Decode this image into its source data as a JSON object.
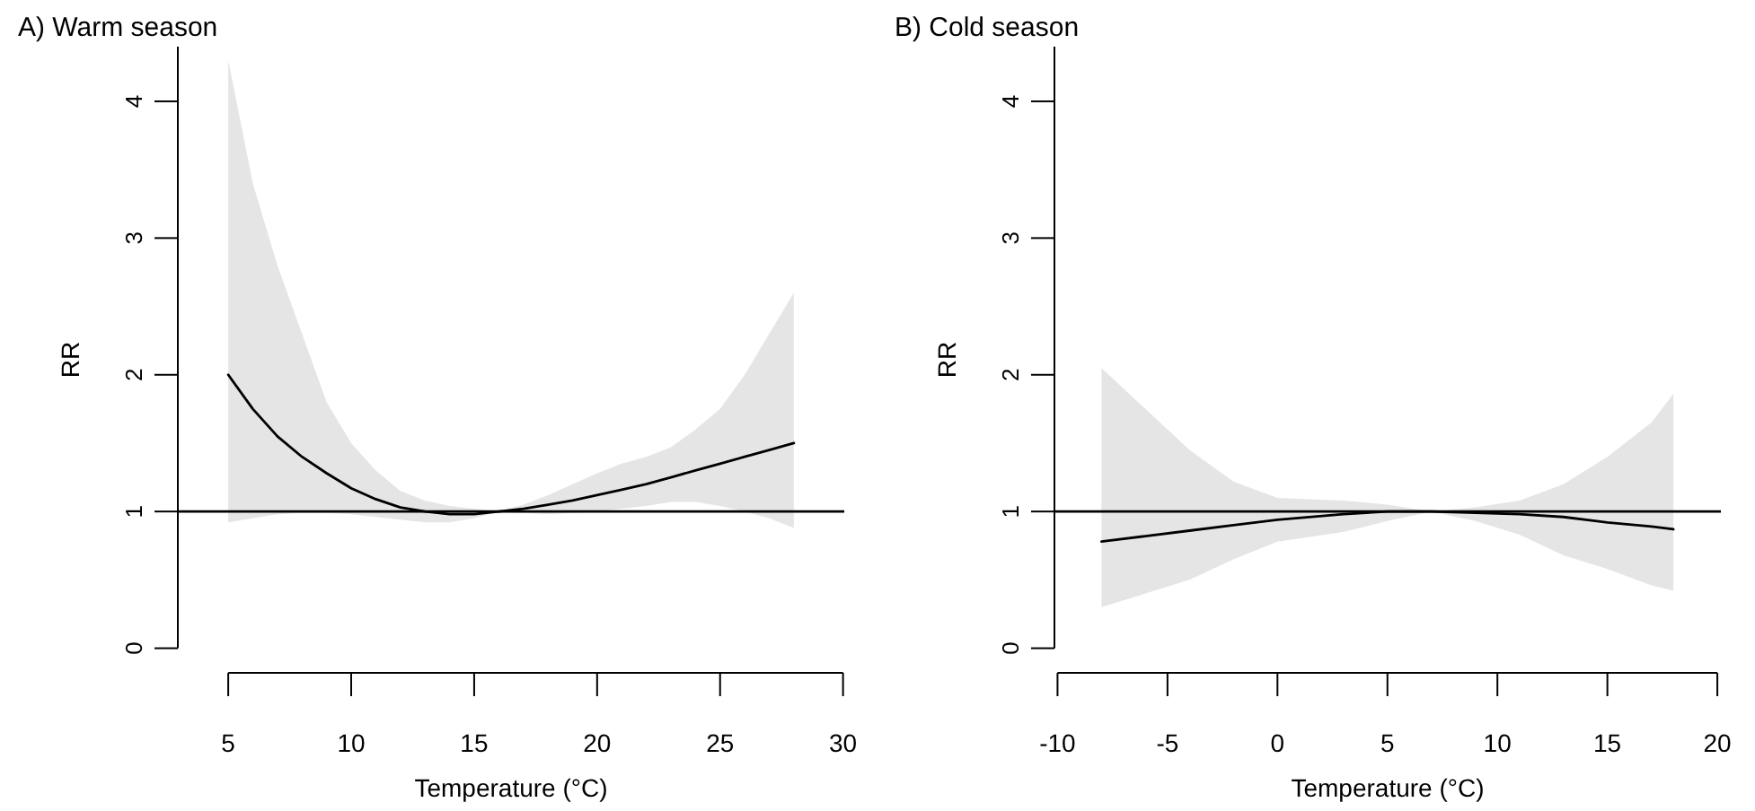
{
  "chart_data": [
    {
      "type": "line",
      "title": "A) Warm season",
      "xlabel": "Temperature (°C)",
      "ylabel": "RR",
      "xlim": [
        2.95,
        30.05
      ],
      "ylim": [
        -0.18,
        4.4
      ],
      "xticks": [
        5,
        10,
        15,
        20,
        25,
        30
      ],
      "yticks": [
        0,
        1,
        2,
        3,
        4
      ],
      "series": [
        {
          "color": "#000000",
          "x": [
            5,
            6,
            7,
            8,
            9,
            10,
            11,
            12,
            13,
            14,
            15,
            16,
            17,
            18,
            19,
            20,
            21,
            22,
            23,
            24,
            25,
            26,
            27,
            28
          ],
          "values": [
            2.0,
            1.75,
            1.55,
            1.4,
            1.28,
            1.17,
            1.09,
            1.03,
            1.0,
            0.98,
            0.98,
            1.0,
            1.02,
            1.05,
            1.08,
            1.12,
            1.16,
            1.2,
            1.25,
            1.3,
            1.35,
            1.4,
            1.45,
            1.5
          ],
          "lower": [
            0.92,
            0.95,
            0.98,
            0.99,
            0.99,
            0.98,
            0.96,
            0.94,
            0.92,
            0.92,
            0.95,
            1.0,
            0.99,
            0.98,
            0.99,
            1.0,
            1.02,
            1.04,
            1.07,
            1.07,
            1.04,
            1.0,
            0.95,
            0.88
          ],
          "upper": [
            4.3,
            3.4,
            2.8,
            2.3,
            1.8,
            1.5,
            1.3,
            1.15,
            1.08,
            1.04,
            1.02,
            1.0,
            1.05,
            1.12,
            1.2,
            1.28,
            1.35,
            1.4,
            1.47,
            1.6,
            1.75,
            2.0,
            2.3,
            2.6
          ]
        }
      ],
      "ref_lines": [
        {
          "axis": "y",
          "value": 1,
          "color": "#000000"
        }
      ]
    },
    {
      "type": "line",
      "title": "B) Cold season",
      "xlabel": "Temperature (°C)",
      "ylabel": "RR",
      "xlim": [
        -10.14,
        20.16
      ],
      "ylim": [
        -0.18,
        4.4
      ],
      "xticks": [
        -10,
        -5,
        0,
        5,
        10,
        15,
        20
      ],
      "yticks": [
        0,
        1,
        2,
        3,
        4
      ],
      "series": [
        {
          "color": "#000000",
          "x": [
            -8,
            -6,
            -4,
            -2,
            0,
            3,
            5,
            7,
            9,
            11,
            13,
            15,
            17,
            18
          ],
          "values": [
            0.78,
            0.82,
            0.86,
            0.9,
            0.94,
            0.98,
            1.0,
            1.0,
            0.99,
            0.98,
            0.96,
            0.92,
            0.89,
            0.87
          ],
          "lower": [
            0.3,
            0.4,
            0.5,
            0.65,
            0.78,
            0.85,
            0.93,
            1.0,
            0.93,
            0.83,
            0.68,
            0.58,
            0.46,
            0.42
          ],
          "upper": [
            2.05,
            1.75,
            1.45,
            1.22,
            1.1,
            1.08,
            1.05,
            1.0,
            1.03,
            1.08,
            1.2,
            1.4,
            1.65,
            1.86
          ]
        }
      ],
      "ref_lines": [
        {
          "axis": "y",
          "value": 1,
          "color": "#000000"
        }
      ]
    }
  ]
}
